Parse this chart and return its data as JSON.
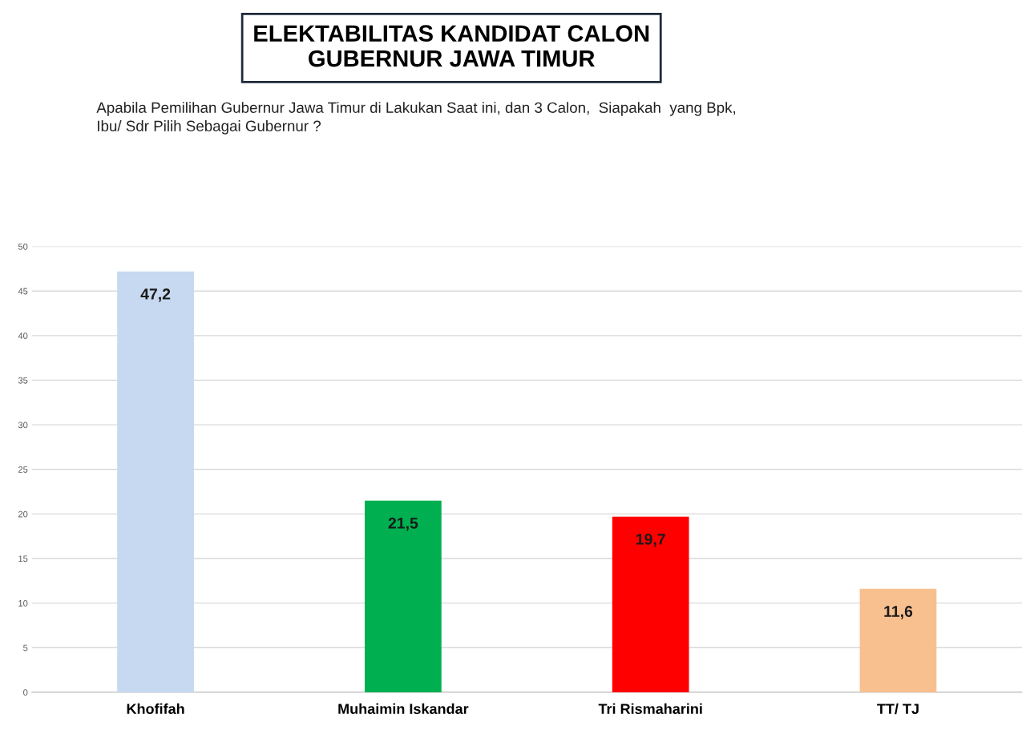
{
  "chart_data": {
    "type": "bar",
    "title": "ELEKTABILITAS KANDIDAT CALON\nGUBERNUR JAWA TIMUR",
    "subtitle": "Apabila Pemilihan Gubernur Jawa Timur di Lakukan Saat ini, dan 3 Calon,  Siapakah  yang Bpk,\nIbu/ Sdr Pilih Sebagai Gubernur ?",
    "categories": [
      "Khofifah",
      "Muhaimin Iskandar",
      "Tri Rismaharini",
      "TT/ TJ"
    ],
    "values": [
      47.2,
      21.5,
      19.7,
      11.6
    ],
    "value_labels": [
      "47,2",
      "21,5",
      "19,7",
      "11,6"
    ],
    "colors": [
      "#c6d9f0",
      "#00b050",
      "#ff0000",
      "#f9c08f"
    ],
    "ylim": [
      0,
      50
    ],
    "yticks": [
      0,
      5,
      10,
      15,
      20,
      25,
      30,
      35,
      40,
      45,
      50
    ],
    "grid": "y"
  }
}
